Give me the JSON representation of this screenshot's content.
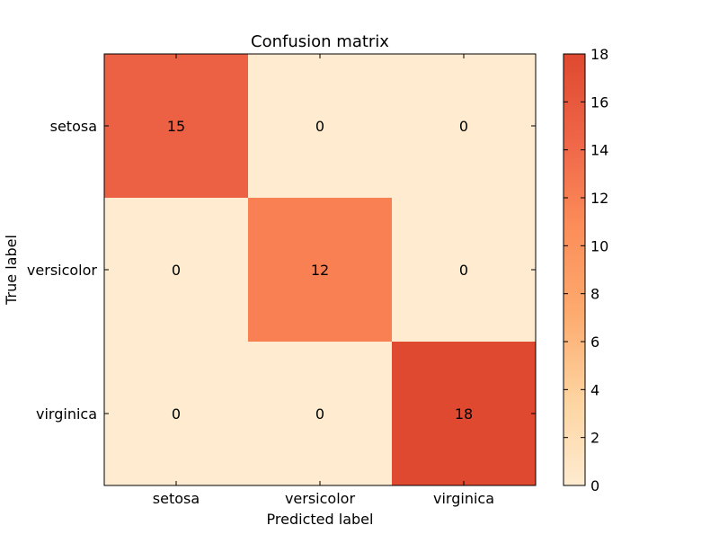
{
  "chart_data": {
    "type": "heatmap",
    "title": "Confusion matrix",
    "xlabel": "Predicted label",
    "ylabel": "True label",
    "x_categories": [
      "setosa",
      "versicolor",
      "virginica"
    ],
    "y_categories": [
      "setosa",
      "versicolor",
      "virginica"
    ],
    "values": [
      [
        15,
        0,
        0
      ],
      [
        0,
        12,
        0
      ],
      [
        0,
        0,
        18
      ]
    ],
    "colorbar": {
      "range": [
        0,
        18
      ],
      "ticks": [
        0,
        2,
        4,
        6,
        8,
        10,
        12,
        14,
        16,
        18
      ],
      "colormap": "Oranges-Reds",
      "low_color": "#feebd0",
      "high_color": "#df4930"
    }
  }
}
